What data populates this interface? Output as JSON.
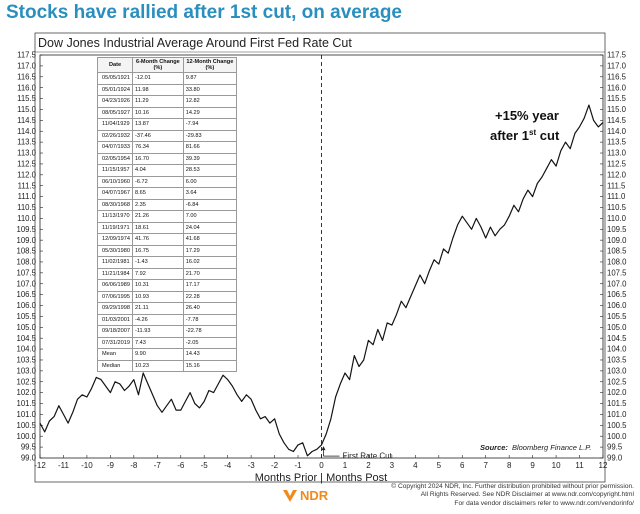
{
  "headline": "Stocks have rallied after 1st cut, on average",
  "colors": {
    "headline": "#2a8fbf",
    "line": "#141414",
    "logo": "#f08a1c"
  },
  "chart_data": {
    "type": "line",
    "title": "Dow Jones Industrial Average Around First Fed Rate Cut",
    "xlabel": "Months Prior | Months Post",
    "ylabel": "",
    "xlim": [
      -12,
      12
    ],
    "ylim": [
      99.0,
      117.5
    ],
    "xticks": [
      "-12",
      "-11",
      "-10",
      "-9",
      "-8",
      "-7",
      "-6",
      "-5",
      "-4",
      "-3",
      "-2",
      "-1",
      "0",
      "1",
      "2",
      "3",
      "4",
      "5",
      "6",
      "7",
      "8",
      "9",
      "10",
      "11",
      "12"
    ],
    "yticks": [
      "117.5",
      "117.0",
      "116.5",
      "116.0",
      "115.5",
      "115.0",
      "114.5",
      "114.0",
      "113.5",
      "113.0",
      "112.5",
      "112.0",
      "111.5",
      "111.0",
      "110.5",
      "110.0",
      "109.5",
      "109.0",
      "108.5",
      "108.0",
      "107.5",
      "107.0",
      "106.5",
      "106.0",
      "105.5",
      "105.0",
      "104.5",
      "104.0",
      "103.5",
      "103.0",
      "102.5",
      "102.0",
      "101.5",
      "101.0",
      "100.5",
      "100.0",
      "99.5",
      "99.0"
    ],
    "grid": false,
    "annotations": {
      "cut_label": "First Rate Cut",
      "callout_line1": "+15% year",
      "callout_line2_pre": "after 1",
      "callout_line2_sup": "st",
      "callout_line2_post": " cut",
      "source_label": "Source:",
      "source_text": "Bloomberg Finance L.P."
    },
    "series": [
      {
        "name": "Dow Jones Industrial Average (average path)",
        "x": [
          -12,
          -11.8,
          -11.6,
          -11.4,
          -11.2,
          -11,
          -10.8,
          -10.6,
          -10.4,
          -10.2,
          -10,
          -9.8,
          -9.6,
          -9.4,
          -9.2,
          -9,
          -8.8,
          -8.6,
          -8.4,
          -8.2,
          -8,
          -7.8,
          -7.6,
          -7.4,
          -7.2,
          -7,
          -6.8,
          -6.6,
          -6.4,
          -6.2,
          -6,
          -5.8,
          -5.6,
          -5.4,
          -5.2,
          -5,
          -4.8,
          -4.6,
          -4.4,
          -4.2,
          -4,
          -3.8,
          -3.6,
          -3.4,
          -3.2,
          -3,
          -2.8,
          -2.6,
          -2.4,
          -2.2,
          -2,
          -1.8,
          -1.6,
          -1.4,
          -1.2,
          -1,
          -0.8,
          -0.6,
          -0.4,
          -0.2,
          0,
          0.2,
          0.4,
          0.6,
          0.8,
          1,
          1.2,
          1.4,
          1.6,
          1.8,
          2,
          2.2,
          2.4,
          2.6,
          2.8,
          3,
          3.2,
          3.4,
          3.6,
          3.8,
          4,
          4.2,
          4.4,
          4.6,
          4.8,
          5,
          5.2,
          5.4,
          5.6,
          5.8,
          6,
          6.2,
          6.4,
          6.6,
          6.8,
          7,
          7.2,
          7.4,
          7.6,
          7.8,
          8,
          8.2,
          8.4,
          8.6,
          8.8,
          9,
          9.2,
          9.4,
          9.6,
          9.8,
          10,
          10.2,
          10.4,
          10.6,
          10.8,
          11,
          11.2,
          11.4,
          11.6,
          11.8,
          12
        ],
        "values": [
          100.6,
          100.2,
          100.7,
          100.9,
          101.4,
          101.0,
          100.6,
          101.1,
          101.7,
          101.9,
          101.8,
          102.2,
          102.7,
          102.6,
          102.3,
          102.0,
          102.5,
          102.4,
          102.1,
          102.3,
          102.6,
          101.9,
          102.9,
          102.4,
          101.9,
          101.4,
          101.1,
          101.4,
          101.7,
          101.2,
          101.2,
          101.6,
          102.0,
          101.5,
          101.3,
          101.6,
          102.1,
          102.0,
          102.4,
          102.8,
          102.6,
          102.3,
          101.9,
          101.6,
          101.9,
          101.7,
          101.2,
          100.8,
          100.9,
          100.6,
          100.8,
          100.1,
          99.7,
          99.4,
          99.3,
          99.6,
          99.7,
          99.1,
          99.3,
          99.4,
          99.6,
          100.1,
          100.8,
          101.8,
          102.4,
          102.9,
          102.6,
          103.7,
          103.2,
          103.5,
          104.4,
          104.2,
          104.9,
          104.4,
          105.2,
          105.1,
          105.6,
          106.2,
          105.9,
          106.4,
          106.9,
          107.4,
          107.0,
          107.6,
          108.1,
          107.9,
          108.6,
          108.4,
          109.1,
          109.7,
          110.1,
          109.8,
          109.5,
          110.0,
          109.6,
          109.1,
          109.6,
          109.2,
          109.5,
          109.7,
          110.1,
          110.6,
          110.3,
          110.9,
          111.3,
          111.0,
          111.6,
          111.9,
          112.3,
          112.7,
          112.4,
          113.1,
          113.5,
          113.2,
          113.9,
          114.2,
          114.6,
          115.2,
          114.5,
          114.2,
          114.4
        ]
      }
    ],
    "table": {
      "headers": [
        "Date",
        "6-Month Change (%)",
        "12-Month Change (%)"
      ],
      "rows": [
        [
          "05/05/1921",
          "-12.01",
          "9.87"
        ],
        [
          "05/01/1924",
          "11.98",
          "33.80"
        ],
        [
          "04/23/1926",
          "11.29",
          "12.82"
        ],
        [
          "08/05/1927",
          "10.16",
          "14.29"
        ],
        [
          "11/04/1929",
          "13.87",
          "-7.94"
        ],
        [
          "02/26/1932",
          "-37.46",
          "-29.83"
        ],
        [
          "04/07/1933",
          "76.34",
          "81.66"
        ],
        [
          "02/05/1954",
          "16.70",
          "39.39"
        ],
        [
          "11/15/1957",
          "4.04",
          "28.53"
        ],
        [
          "06/10/1960",
          "-6.72",
          "6.00"
        ],
        [
          "04/07/1967",
          "8.65",
          "3.64"
        ],
        [
          "08/30/1968",
          "2.35",
          "-6.84"
        ],
        [
          "11/13/1970",
          "21.26",
          "7.00"
        ],
        [
          "11/19/1971",
          "18.61",
          "24.04"
        ],
        [
          "12/09/1974",
          "41.76",
          "41.68"
        ],
        [
          "05/30/1980",
          "16.75",
          "17.29"
        ],
        [
          "11/02/1981",
          "-1.43",
          "16.02"
        ],
        [
          "11/21/1984",
          "7.92",
          "21.70"
        ],
        [
          "06/06/1989",
          "10.31",
          "17.17"
        ],
        [
          "07/06/1995",
          "10.93",
          "22.28"
        ],
        [
          "09/29/1998",
          "21.11",
          "26.40"
        ],
        [
          "01/03/2001",
          "-4.26",
          "-7.78"
        ],
        [
          "09/18/2007",
          "-11.93",
          "-22.78"
        ],
        [
          "07/31/2019",
          "7.43",
          "-2.05"
        ],
        [
          "Mean",
          "9.90",
          "14.43"
        ],
        [
          "Median",
          "10.23",
          "15.16"
        ]
      ]
    }
  },
  "footer": {
    "line1": "© Copyright 2024 NDR, Inc. Further distribution prohibited without prior permission.",
    "line2": "All Rights Reserved. See NDR Disclaimer at www.ndr.com/copyright.html",
    "line3": "For data vendor disclaimers refer to www.ndr.com/vendorinfo/",
    "logo_text": "NDR"
  }
}
